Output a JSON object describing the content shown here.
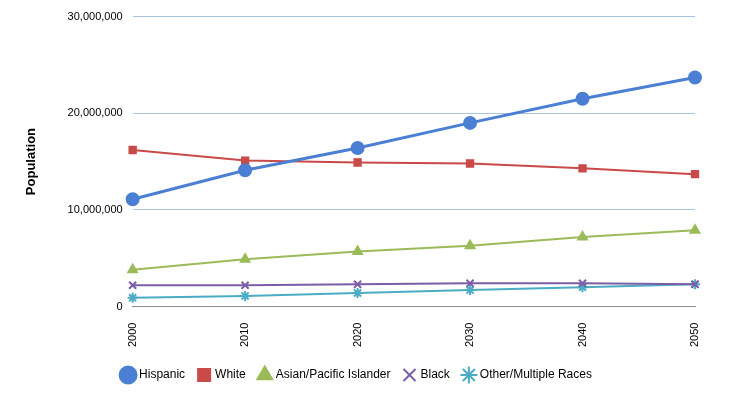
{
  "chart_data": {
    "type": "line",
    "y_label": "Population",
    "categories": [
      "2000",
      "2010",
      "2020",
      "2030",
      "2040",
      "2050"
    ],
    "series": [
      {
        "name": "Hispanic",
        "color": "#4a7fd4",
        "marker": "circle",
        "values": [
          11100000,
          14100000,
          16400000,
          19000000,
          21500000,
          23700000
        ]
      },
      {
        "name": "White",
        "color": "#c94a48",
        "marker": "square",
        "values": [
          16200000,
          15100000,
          14900000,
          14800000,
          14300000,
          13700000
        ]
      },
      {
        "name": "Asian/Pacific Islander",
        "color": "#9bbb59",
        "marker": "triangle",
        "values": [
          3800000,
          4900000,
          5700000,
          6300000,
          7200000,
          7900000
        ]
      },
      {
        "name": "Black",
        "color": "#7b5ea7",
        "marker": "x",
        "values": [
          2200000,
          2200000,
          2300000,
          2400000,
          2400000,
          2300000
        ]
      },
      {
        "name": "Other/Multiple Races",
        "color": "#4bacc6",
        "marker": "star",
        "values": [
          900000,
          1100000,
          1400000,
          1700000,
          2000000,
          2300000
        ]
      }
    ],
    "ylim": [
      0,
      30000000
    ],
    "yticks": [
      0,
      {
        "value": 10000000,
        "label": "10,000,000"
      },
      {
        "value": 20000000,
        "label": "20,000,000"
      },
      {
        "value": 30000000,
        "label": "30,000,000"
      }
    ],
    "grid": true,
    "legend": "bottom"
  }
}
